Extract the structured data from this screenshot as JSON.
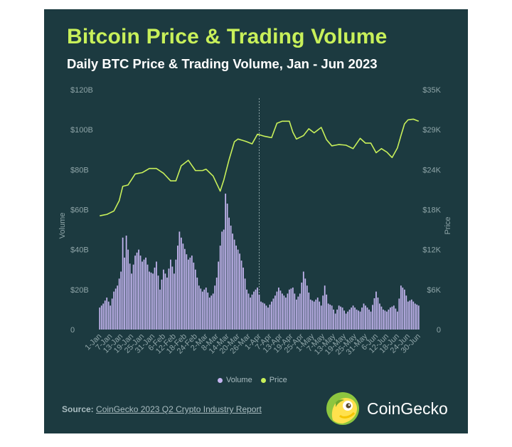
{
  "title": "Bitcoin Price & Trading Volume",
  "subtitle": "Daily BTC Price & Trading Volume, Jan - Jun 2023",
  "legend": {
    "volume": "Volume",
    "price": "Price"
  },
  "source": {
    "label": "Source:",
    "link_text": "CoinGecko 2023 Q2 Crypto Industry Report"
  },
  "brand": {
    "name": "CoinGecko",
    "icon": "gecko-logo-icon"
  },
  "colors": {
    "background": "#1c3a40",
    "title": "#c8f05a",
    "volume": "#c4b5f0",
    "price": "#c8f05a",
    "tick": "#8fa5a8"
  },
  "chart_data": {
    "type": "bar+line",
    "x_tick_labels": [
      "1-Jan",
      "7-Jan",
      "13-Jan",
      "19-Jan",
      "25-Jan",
      "31-Jan",
      "6-Feb",
      "12-Feb",
      "18-Feb",
      "24-Feb",
      "2-Mar",
      "8-Mar",
      "14-Mar",
      "20-Mar",
      "26-Mar",
      "1-Apr",
      "7-Apr",
      "13-Apr",
      "19-Apr",
      "25-Apr",
      "1-May",
      "7-May",
      "13-May",
      "19-May",
      "25-May",
      "31-May",
      "6-Jun",
      "12-Jun",
      "18-Jun",
      "24-Jun",
      "30-Jun"
    ],
    "y_left": {
      "label": "Volume",
      "ticks": [
        "0",
        "$20B",
        "$40B",
        "$60B",
        "$80B",
        "$100B",
        "$120B"
      ],
      "range": [
        0,
        120
      ]
    },
    "y_right": {
      "label": "Price",
      "ticks": [
        "0",
        "$6K",
        "$12K",
        "$18K",
        "$24K",
        "$29K",
        "$35K"
      ],
      "range": [
        0,
        35
      ]
    },
    "grid": false,
    "legend_position": "bottom",
    "marker_date": "1-Apr",
    "series": [
      {
        "name": "Volume",
        "type": "bar",
        "unit": "billion USD",
        "anchors": [
          [
            "2023-01-01",
            11
          ],
          [
            "2023-01-03",
            13
          ],
          [
            "2023-01-05",
            16
          ],
          [
            "2023-01-07",
            12
          ],
          [
            "2023-01-09",
            19
          ],
          [
            "2023-01-11",
            22
          ],
          [
            "2023-01-13",
            29
          ],
          [
            "2023-01-14",
            46
          ],
          [
            "2023-01-15",
            36
          ],
          [
            "2023-01-16",
            47
          ],
          [
            "2023-01-18",
            33
          ],
          [
            "2023-01-19",
            28
          ],
          [
            "2023-01-21",
            37
          ],
          [
            "2023-01-23",
            40
          ],
          [
            "2023-01-25",
            34
          ],
          [
            "2023-01-27",
            36
          ],
          [
            "2023-01-29",
            29
          ],
          [
            "2023-01-31",
            28
          ],
          [
            "2023-02-02",
            34
          ],
          [
            "2023-02-04",
            20
          ],
          [
            "2023-02-06",
            30
          ],
          [
            "2023-02-08",
            26
          ],
          [
            "2023-02-10",
            35
          ],
          [
            "2023-02-12",
            28
          ],
          [
            "2023-02-15",
            49
          ],
          [
            "2023-02-17",
            43
          ],
          [
            "2023-02-20",
            35
          ],
          [
            "2023-02-22",
            37
          ],
          [
            "2023-02-24",
            30
          ],
          [
            "2023-02-26",
            22
          ],
          [
            "2023-02-28",
            19
          ],
          [
            "2023-03-02",
            21
          ],
          [
            "2023-03-04",
            16
          ],
          [
            "2023-03-06",
            18
          ],
          [
            "2023-03-08",
            26
          ],
          [
            "2023-03-10",
            42
          ],
          [
            "2023-03-11",
            49
          ],
          [
            "2023-03-12",
            50
          ],
          [
            "2023-03-13",
            68
          ],
          [
            "2023-03-14",
            63
          ],
          [
            "2023-03-15",
            56
          ],
          [
            "2023-03-17",
            48
          ],
          [
            "2023-03-19",
            42
          ],
          [
            "2023-03-21",
            38
          ],
          [
            "2023-03-23",
            31
          ],
          [
            "2023-03-25",
            20
          ],
          [
            "2023-03-27",
            16
          ],
          [
            "2023-03-29",
            19
          ],
          [
            "2023-03-31",
            21
          ],
          [
            "2023-04-02",
            14
          ],
          [
            "2023-04-04",
            13
          ],
          [
            "2023-04-06",
            11
          ],
          [
            "2023-04-08",
            14
          ],
          [
            "2023-04-10",
            17
          ],
          [
            "2023-04-12",
            21
          ],
          [
            "2023-04-14",
            18
          ],
          [
            "2023-04-16",
            16
          ],
          [
            "2023-04-18",
            20
          ],
          [
            "2023-04-20",
            21
          ],
          [
            "2023-04-22",
            15
          ],
          [
            "2023-04-24",
            18
          ],
          [
            "2023-04-26",
            29
          ],
          [
            "2023-04-28",
            22
          ],
          [
            "2023-04-30",
            15
          ],
          [
            "2023-05-02",
            14
          ],
          [
            "2023-05-04",
            16
          ],
          [
            "2023-05-06",
            12
          ],
          [
            "2023-05-08",
            22
          ],
          [
            "2023-05-10",
            13
          ],
          [
            "2023-05-12",
            12
          ],
          [
            "2023-05-14",
            8
          ],
          [
            "2023-05-16",
            12
          ],
          [
            "2023-05-18",
            11
          ],
          [
            "2023-05-20",
            8
          ],
          [
            "2023-05-22",
            10
          ],
          [
            "2023-05-24",
            12
          ],
          [
            "2023-05-26",
            10
          ],
          [
            "2023-05-28",
            9
          ],
          [
            "2023-05-30",
            13
          ],
          [
            "2023-06-01",
            11
          ],
          [
            "2023-06-03",
            9
          ],
          [
            "2023-06-06",
            19
          ],
          [
            "2023-06-08",
            13
          ],
          [
            "2023-06-10",
            10
          ],
          [
            "2023-06-12",
            9
          ],
          [
            "2023-06-14",
            11
          ],
          [
            "2023-06-16",
            12
          ],
          [
            "2023-06-18",
            9
          ],
          [
            "2023-06-20",
            22
          ],
          [
            "2023-06-22",
            20
          ],
          [
            "2023-06-24",
            14
          ],
          [
            "2023-06-26",
            15
          ],
          [
            "2023-06-28",
            13
          ],
          [
            "2023-06-30",
            12
          ]
        ]
      },
      {
        "name": "Price",
        "type": "line",
        "unit": "thousand USD",
        "anchors": [
          [
            "2023-01-01",
            16.6
          ],
          [
            "2023-01-05",
            16.8
          ],
          [
            "2023-01-09",
            17.3
          ],
          [
            "2023-01-12",
            18.8
          ],
          [
            "2023-01-14",
            20.9
          ],
          [
            "2023-01-17",
            21.1
          ],
          [
            "2023-01-21",
            22.7
          ],
          [
            "2023-01-25",
            22.9
          ],
          [
            "2023-01-29",
            23.5
          ],
          [
            "2023-02-02",
            23.5
          ],
          [
            "2023-02-06",
            22.8
          ],
          [
            "2023-02-10",
            21.7
          ],
          [
            "2023-02-13",
            21.7
          ],
          [
            "2023-02-16",
            23.9
          ],
          [
            "2023-02-20",
            24.7
          ],
          [
            "2023-02-24",
            23.2
          ],
          [
            "2023-02-28",
            23.2
          ],
          [
            "2023-03-02",
            23.4
          ],
          [
            "2023-03-06",
            22.4
          ],
          [
            "2023-03-10",
            20.2
          ],
          [
            "2023-03-12",
            21.8
          ],
          [
            "2023-03-15",
            24.8
          ],
          [
            "2023-03-18",
            27.4
          ],
          [
            "2023-03-20",
            27.8
          ],
          [
            "2023-03-24",
            27.5
          ],
          [
            "2023-03-28",
            27.1
          ],
          [
            "2023-03-31",
            28.5
          ],
          [
            "2023-04-04",
            28.2
          ],
          [
            "2023-04-08",
            28.0
          ],
          [
            "2023-04-11",
            30.1
          ],
          [
            "2023-04-14",
            30.4
          ],
          [
            "2023-04-18",
            30.4
          ],
          [
            "2023-04-20",
            28.8
          ],
          [
            "2023-04-22",
            27.8
          ],
          [
            "2023-04-26",
            28.3
          ],
          [
            "2023-04-29",
            29.3
          ],
          [
            "2023-05-02",
            28.7
          ],
          [
            "2023-05-06",
            29.5
          ],
          [
            "2023-05-09",
            27.7
          ],
          [
            "2023-05-12",
            26.8
          ],
          [
            "2023-05-16",
            27.0
          ],
          [
            "2023-05-20",
            26.9
          ],
          [
            "2023-05-24",
            26.4
          ],
          [
            "2023-05-28",
            27.9
          ],
          [
            "2023-05-31",
            27.2
          ],
          [
            "2023-06-03",
            27.2
          ],
          [
            "2023-06-06",
            25.8
          ],
          [
            "2023-06-09",
            26.4
          ],
          [
            "2023-06-12",
            25.9
          ],
          [
            "2023-06-15",
            25.1
          ],
          [
            "2023-06-18",
            26.5
          ],
          [
            "2023-06-20",
            28.3
          ],
          [
            "2023-06-22",
            30.0
          ],
          [
            "2023-06-24",
            30.6
          ],
          [
            "2023-06-27",
            30.7
          ],
          [
            "2023-06-30",
            30.4
          ]
        ]
      }
    ]
  }
}
